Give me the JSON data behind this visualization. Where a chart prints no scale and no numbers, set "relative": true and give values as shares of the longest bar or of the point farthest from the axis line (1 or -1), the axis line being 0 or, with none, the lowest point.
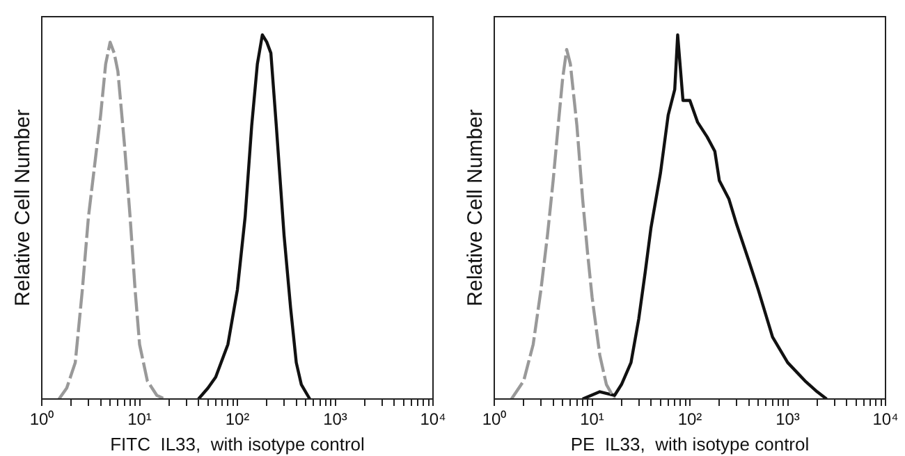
{
  "chart_data": [
    {
      "type": "line",
      "xlabel": "FITC  IL33,  with isotype control",
      "ylabel": "Relative Cell Number",
      "relative": true,
      "log": "x",
      "legend": false,
      "grid": false,
      "tick_labels": "x",
      "xlim": [
        1,
        10000
      ],
      "xticks": [
        {
          "value": 1,
          "label": "10⁰"
        },
        {
          "value": 2,
          "label": null
        },
        {
          "value": 3,
          "label": null
        },
        {
          "value": 4,
          "label": null
        },
        {
          "value": 5,
          "label": null
        },
        {
          "value": 6,
          "label": null
        },
        {
          "value": 7,
          "label": null
        },
        {
          "value": 8,
          "label": null
        },
        {
          "value": 9,
          "label": null
        },
        {
          "value": 10,
          "label": "10¹"
        },
        {
          "value": 20,
          "label": null
        },
        {
          "value": 30,
          "label": null
        },
        {
          "value": 40,
          "label": null
        },
        {
          "value": 50,
          "label": null
        },
        {
          "value": 60,
          "label": null
        },
        {
          "value": 70,
          "label": null
        },
        {
          "value": 80,
          "label": null
        },
        {
          "value": 90,
          "label": null
        },
        {
          "value": 100,
          "label": "10²"
        },
        {
          "value": 200,
          "label": null
        },
        {
          "value": 300,
          "label": null
        },
        {
          "value": 400,
          "label": null
        },
        {
          "value": 500,
          "label": null
        },
        {
          "value": 600,
          "label": null
        },
        {
          "value": 700,
          "label": null
        },
        {
          "value": 800,
          "label": null
        },
        {
          "value": 900,
          "label": null
        },
        {
          "value": 1000,
          "label": "10³"
        },
        {
          "value": 2000,
          "label": null
        },
        {
          "value": 3000,
          "label": null
        },
        {
          "value": 4000,
          "label": null
        },
        {
          "value": 5000,
          "label": null
        },
        {
          "value": 6000,
          "label": null
        },
        {
          "value": 7000,
          "label": null
        },
        {
          "value": 8000,
          "label": null
        },
        {
          "value": 9000,
          "label": null
        },
        {
          "value": 10000,
          "label": "10⁴"
        }
      ],
      "series": [
        {
          "color": "#999999",
          "line_style": "dashed",
          "x": [
            1.5,
            1.8,
            2.2,
            2.6,
            3,
            3.5,
            4,
            4.5,
            5,
            5.5,
            6,
            7,
            8,
            9,
            10,
            12,
            15,
            18
          ],
          "values": [
            0,
            0.03,
            0.1,
            0.3,
            0.5,
            0.65,
            0.78,
            0.92,
            0.98,
            0.95,
            0.9,
            0.7,
            0.5,
            0.3,
            0.15,
            0.05,
            0.01,
            0
          ]
        },
        {
          "color": "#111111",
          "x": [
            40,
            50,
            60,
            80,
            100,
            120,
            140,
            160,
            180,
            200,
            220,
            250,
            300,
            350,
            400,
            450,
            550
          ],
          "values": [
            0,
            0.03,
            0.06,
            0.15,
            0.3,
            0.5,
            0.75,
            0.92,
            1,
            0.98,
            0.95,
            0.75,
            0.45,
            0.25,
            0.1,
            0.04,
            0
          ]
        }
      ]
    },
    {
      "type": "line",
      "xlabel": "PE  IL33,  with isotype control",
      "ylabel": "Relative Cell Number",
      "relative": true,
      "log": "x",
      "legend": false,
      "grid": false,
      "tick_labels": "x",
      "xlim": [
        1,
        10000
      ],
      "xticks": [
        {
          "value": 1,
          "label": "10⁰"
        },
        {
          "value": 2,
          "label": null
        },
        {
          "value": 3,
          "label": null
        },
        {
          "value": 4,
          "label": null
        },
        {
          "value": 5,
          "label": null
        },
        {
          "value": 6,
          "label": null
        },
        {
          "value": 7,
          "label": null
        },
        {
          "value": 8,
          "label": null
        },
        {
          "value": 9,
          "label": null
        },
        {
          "value": 10,
          "label": "10¹"
        },
        {
          "value": 20,
          "label": null
        },
        {
          "value": 30,
          "label": null
        },
        {
          "value": 40,
          "label": null
        },
        {
          "value": 50,
          "label": null
        },
        {
          "value": 60,
          "label": null
        },
        {
          "value": 70,
          "label": null
        },
        {
          "value": 80,
          "label": null
        },
        {
          "value": 90,
          "label": null
        },
        {
          "value": 100,
          "label": "10²"
        },
        {
          "value": 200,
          "label": null
        },
        {
          "value": 300,
          "label": null
        },
        {
          "value": 400,
          "label": null
        },
        {
          "value": 500,
          "label": null
        },
        {
          "value": 600,
          "label": null
        },
        {
          "value": 700,
          "label": null
        },
        {
          "value": 800,
          "label": null
        },
        {
          "value": 900,
          "label": null
        },
        {
          "value": 1000,
          "label": "10³"
        },
        {
          "value": 2000,
          "label": null
        },
        {
          "value": 3000,
          "label": null
        },
        {
          "value": 4000,
          "label": null
        },
        {
          "value": 5000,
          "label": null
        },
        {
          "value": 6000,
          "label": null
        },
        {
          "value": 7000,
          "label": null
        },
        {
          "value": 8000,
          "label": null
        },
        {
          "value": 9000,
          "label": null
        },
        {
          "value": 10000,
          "label": "10⁴"
        }
      ],
      "series": [
        {
          "color": "#999999",
          "line_style": "dashed",
          "x": [
            1.5,
            2,
            2.5,
            3,
            3.5,
            4,
            4.5,
            5,
            5.5,
            6,
            7,
            8,
            9,
            10,
            12,
            14,
            17
          ],
          "values": [
            0,
            0.05,
            0.15,
            0.3,
            0.45,
            0.6,
            0.75,
            0.88,
            0.96,
            0.92,
            0.75,
            0.55,
            0.4,
            0.28,
            0.12,
            0.04,
            0
          ]
        },
        {
          "color": "#111111",
          "x": [
            8,
            12,
            17,
            20,
            25,
            30,
            35,
            40,
            50,
            60,
            70,
            75,
            85,
            100,
            120,
            150,
            180,
            200,
            250,
            300,
            400,
            500,
            700,
            1000,
            1500,
            2000,
            2500
          ],
          "values": [
            0,
            0.02,
            0.01,
            0.04,
            0.1,
            0.22,
            0.35,
            0.47,
            0.62,
            0.78,
            0.85,
            1,
            0.82,
            0.82,
            0.76,
            0.72,
            0.68,
            0.6,
            0.55,
            0.48,
            0.38,
            0.3,
            0.17,
            0.1,
            0.05,
            0.02,
            0
          ]
        }
      ]
    }
  ]
}
